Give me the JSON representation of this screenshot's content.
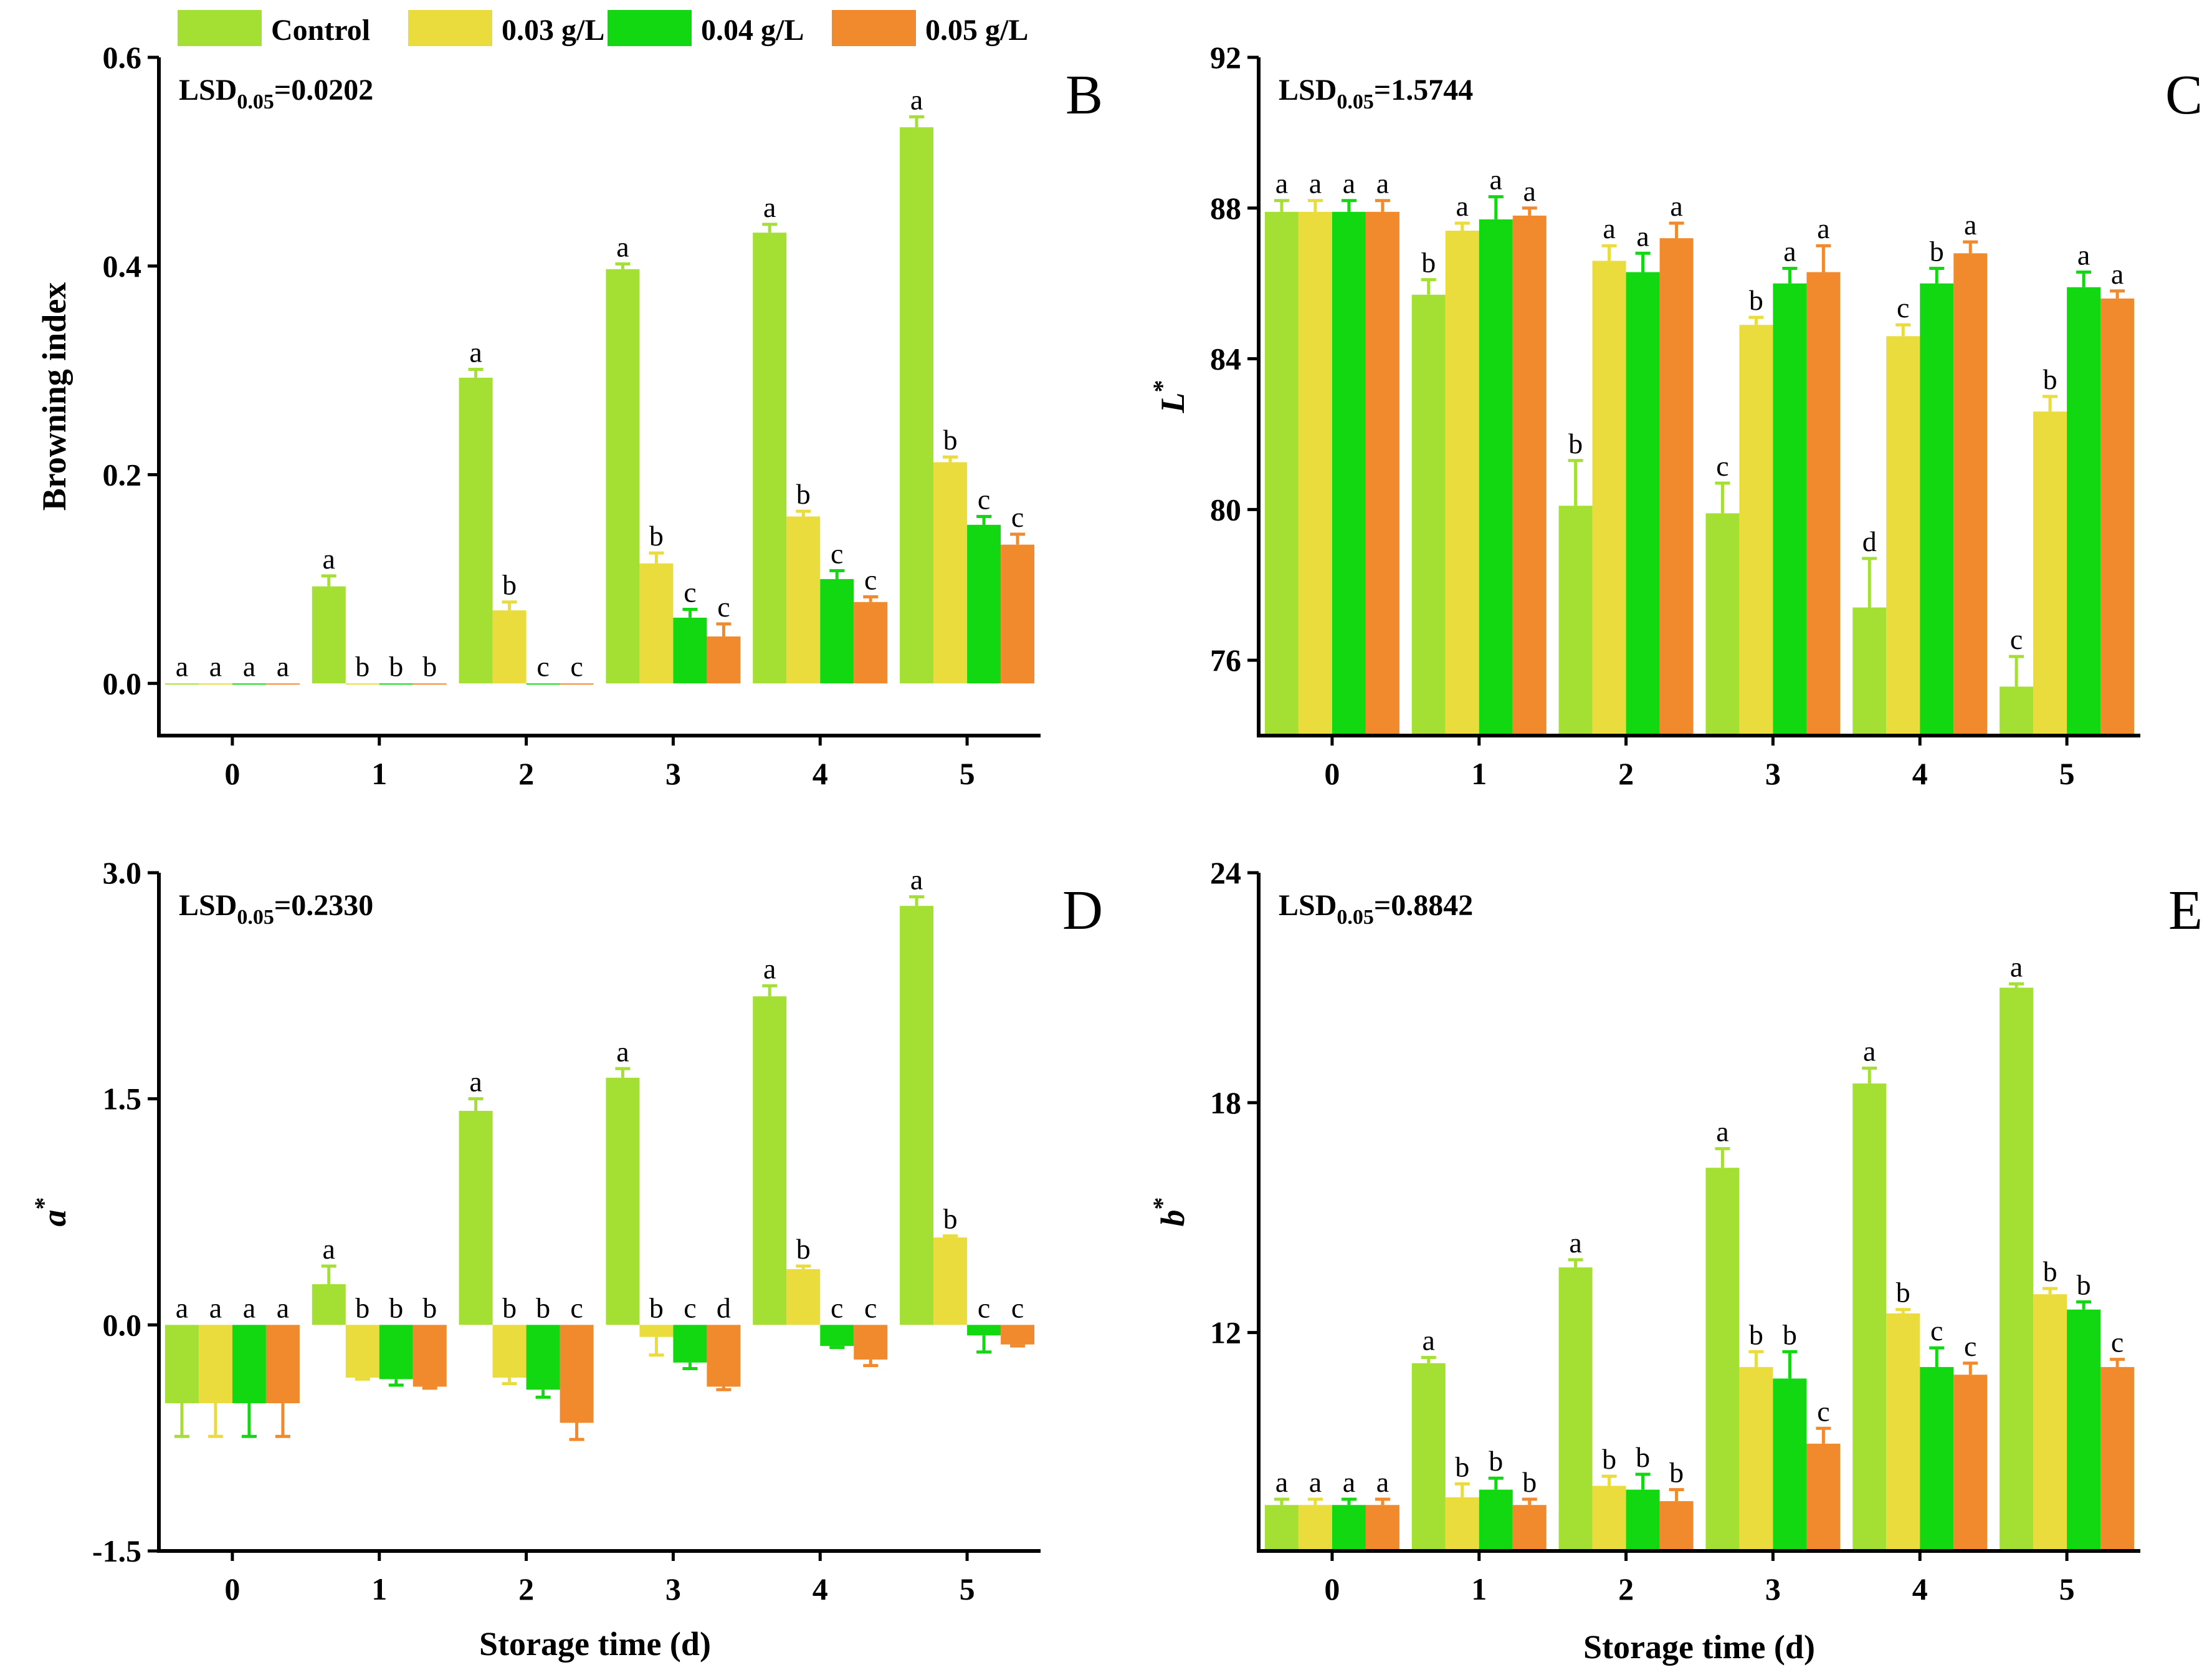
{
  "legend": [
    {
      "label": "Control",
      "color": "#a4e034"
    },
    {
      "label": "0.03 g/L",
      "color": "#e9dc3c"
    },
    {
      "label": "0.04 g/L",
      "color": "#12d812"
    },
    {
      "label": "0.05 g/L",
      "color": "#f08a2c"
    }
  ],
  "xlabel_shared": "Storage time (d)",
  "chart_data": [
    {
      "type": "bar",
      "panel": "B",
      "lsd_label": "LSD",
      "lsd_sub": "0.05",
      "lsd_value": "=0.0202",
      "ylabel": "Browning index",
      "ylabel_italic": false,
      "ylabel_sup": "",
      "ylim": [
        -0.05,
        0.6
      ],
      "yticks": [
        0.0,
        0.2,
        0.4,
        0.6
      ],
      "ytick_labels": [
        "0.0",
        "0.2",
        "0.4",
        "0.6"
      ],
      "categories": [
        "0",
        "1",
        "2",
        "3",
        "4",
        "5"
      ],
      "series": [
        {
          "name": "Control",
          "values": [
            0.0,
            0.093,
            0.293,
            0.397,
            0.432,
            0.533
          ],
          "errors": [
            0.0,
            0.01,
            0.008,
            0.005,
            0.008,
            0.01
          ],
          "letters": [
            "a",
            "a",
            "a",
            "a",
            "a",
            "a"
          ]
        },
        {
          "name": "0.03 g/L",
          "values": [
            0.0,
            0.0,
            0.07,
            0.115,
            0.16,
            0.212
          ],
          "errors": [
            0.0,
            0.0,
            0.008,
            0.01,
            0.005,
            0.005
          ],
          "letters": [
            "a",
            "b",
            "b",
            "b",
            "b",
            "b"
          ]
        },
        {
          "name": "0.04 g/L",
          "values": [
            0.0,
            0.0,
            0.0,
            0.063,
            0.1,
            0.152
          ],
          "errors": [
            0.0,
            0.0,
            0.0,
            0.008,
            0.008,
            0.008
          ],
          "letters": [
            "a",
            "b",
            "c",
            "c",
            "c",
            "c"
          ]
        },
        {
          "name": "0.05 g/L",
          "values": [
            0.0,
            0.0,
            0.0,
            0.045,
            0.078,
            0.133
          ],
          "errors": [
            0.0,
            0.0,
            0.0,
            0.012,
            0.005,
            0.01
          ],
          "letters": [
            "a",
            "b",
            "c",
            "c",
            "c",
            "c"
          ]
        }
      ]
    },
    {
      "type": "bar",
      "panel": "C",
      "lsd_label": "LSD",
      "lsd_sub": "0.05",
      "lsd_value": "=1.5744",
      "ylabel": "L",
      "ylabel_italic": true,
      "ylabel_sup": "*",
      "ylim": [
        74,
        92
      ],
      "yticks": [
        76,
        80,
        84,
        88,
        92
      ],
      "ytick_labels": [
        "76",
        "80",
        "84",
        "88",
        "92"
      ],
      "categories": [
        "0",
        "1",
        "2",
        "3",
        "4",
        "5"
      ],
      "series": [
        {
          "name": "Control",
          "values": [
            87.9,
            85.7,
            80.1,
            79.9,
            77.4,
            75.3
          ],
          "errors": [
            0.3,
            0.4,
            1.2,
            0.8,
            1.3,
            0.8
          ],
          "letters": [
            "a",
            "b",
            "b",
            "c",
            "d",
            "c"
          ]
        },
        {
          "name": "0.03 g/L",
          "values": [
            87.9,
            87.4,
            86.6,
            84.9,
            84.6,
            82.6
          ],
          "errors": [
            0.3,
            0.2,
            0.4,
            0.2,
            0.3,
            0.4
          ],
          "letters": [
            "a",
            "a",
            "a",
            "b",
            "c",
            "b"
          ]
        },
        {
          "name": "0.04 g/L",
          "values": [
            87.9,
            87.7,
            86.3,
            86.0,
            86.0,
            85.9
          ],
          "errors": [
            0.3,
            0.6,
            0.5,
            0.4,
            0.4,
            0.4
          ],
          "letters": [
            "a",
            "a",
            "a",
            "a",
            "b",
            "a"
          ]
        },
        {
          "name": "0.05 g/L",
          "values": [
            87.9,
            87.8,
            87.2,
            86.3,
            86.8,
            85.6
          ],
          "errors": [
            0.3,
            0.2,
            0.4,
            0.7,
            0.3,
            0.2
          ],
          "letters": [
            "a",
            "a",
            "a",
            "a",
            "a",
            "a"
          ]
        }
      ]
    },
    {
      "type": "bar",
      "panel": "D",
      "lsd_label": "LSD",
      "lsd_sub": "0.05",
      "lsd_value": "=0.2330",
      "ylabel": "a",
      "ylabel_italic": true,
      "ylabel_sup": "*",
      "ylim": [
        -1.5,
        3.0
      ],
      "yticks": [
        -1.5,
        0.0,
        1.5,
        3.0
      ],
      "ytick_labels": [
        "-1.5",
        "0.0",
        "1.5",
        "3.0"
      ],
      "categories": [
        "0",
        "1",
        "2",
        "3",
        "4",
        "5"
      ],
      "series": [
        {
          "name": "Control",
          "values": [
            -0.52,
            0.27,
            1.42,
            1.64,
            2.18,
            2.78
          ],
          "errors": [
            0.22,
            0.12,
            0.08,
            0.06,
            0.07,
            0.06
          ],
          "letters": [
            "a",
            "a",
            "a",
            "a",
            "a",
            "a"
          ]
        },
        {
          "name": "0.03 g/L",
          "values": [
            -0.52,
            -0.35,
            -0.35,
            -0.08,
            0.37,
            0.58
          ],
          "errors": [
            0.22,
            0.01,
            0.04,
            0.12,
            0.02,
            0.01
          ],
          "letters": [
            "a",
            "b",
            "b",
            "b",
            "b",
            "b"
          ]
        },
        {
          "name": "0.04 g/L",
          "values": [
            -0.52,
            -0.36,
            -0.43,
            -0.25,
            -0.14,
            -0.07
          ],
          "errors": [
            0.22,
            0.04,
            0.05,
            0.04,
            0.01,
            0.11
          ],
          "letters": [
            "a",
            "b",
            "b",
            "c",
            "c",
            "c"
          ]
        },
        {
          "name": "0.05 g/L",
          "values": [
            -0.52,
            -0.41,
            -0.65,
            -0.41,
            -0.23,
            -0.13
          ],
          "errors": [
            0.22,
            0.01,
            0.11,
            0.02,
            0.04,
            0.01
          ],
          "letters": [
            "a",
            "b",
            "c",
            "d",
            "c",
            "c"
          ]
        }
      ]
    },
    {
      "type": "bar",
      "panel": "E",
      "lsd_label": "LSD",
      "lsd_sub": "0.05",
      "lsd_value": "=0.8842",
      "ylabel": "b",
      "ylabel_italic": true,
      "ylabel_sup": "*",
      "ylim": [
        6.3,
        24
      ],
      "yticks": [
        12,
        18,
        24
      ],
      "ytick_labels": [
        "12",
        "18",
        "24"
      ],
      "categories": [
        "0",
        "1",
        "2",
        "3",
        "4",
        "5"
      ],
      "series": [
        {
          "name": "Control",
          "values": [
            7.5,
            11.2,
            13.7,
            16.3,
            18.5,
            21.0
          ],
          "errors": [
            0.15,
            0.15,
            0.2,
            0.5,
            0.4,
            0.1
          ],
          "letters": [
            "a",
            "a",
            "a",
            "a",
            "a",
            "a"
          ]
        },
        {
          "name": "0.03 g/L",
          "values": [
            7.5,
            7.7,
            8.0,
            11.1,
            12.5,
            13.0
          ],
          "errors": [
            0.15,
            0.35,
            0.25,
            0.4,
            0.1,
            0.15
          ],
          "letters": [
            "a",
            "b",
            "b",
            "b",
            "b",
            "b"
          ]
        },
        {
          "name": "0.04 g/L",
          "values": [
            7.5,
            7.9,
            7.9,
            10.8,
            11.1,
            12.6
          ],
          "errors": [
            0.15,
            0.3,
            0.4,
            0.7,
            0.5,
            0.2
          ],
          "letters": [
            "a",
            "b",
            "b",
            "b",
            "c",
            "b"
          ]
        },
        {
          "name": "0.05 g/L",
          "values": [
            7.5,
            7.5,
            7.6,
            9.1,
            10.9,
            11.1
          ],
          "errors": [
            0.15,
            0.15,
            0.3,
            0.4,
            0.3,
            0.2
          ],
          "letters": [
            "a",
            "b",
            "b",
            "c",
            "c",
            "c"
          ]
        }
      ]
    }
  ]
}
